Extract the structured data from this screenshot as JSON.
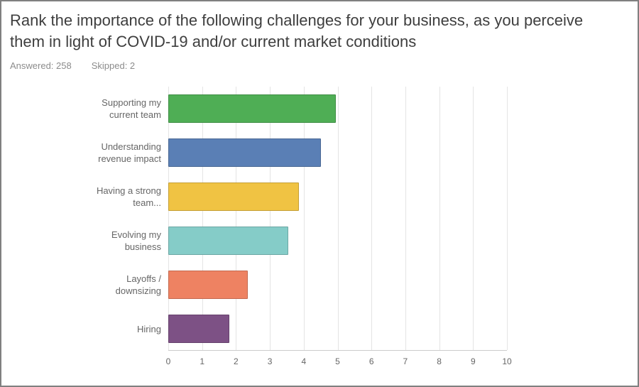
{
  "page": {
    "title": "Rank the importance of the following challenges for your business, as you perceive them in light of COVID-19 and/or current market conditions",
    "answered_label": "Answered: 258",
    "skipped_label": "Skipped: 2"
  },
  "chart_data": {
    "type": "bar",
    "orientation": "horizontal",
    "title": "Rank the importance of the following challenges for your business, as you perceive them in light of COVID-19 and/or current market conditions",
    "categories": [
      "Supporting my current team",
      "Understanding revenue impact",
      "Having a strong team...",
      "Evolving my business",
      "Layoffs / downsizing",
      "Hiring"
    ],
    "values": [
      4.95,
      4.5,
      3.85,
      3.55,
      2.35,
      1.8
    ],
    "colors": [
      "#4fae55",
      "#5a7fb5",
      "#f0c343",
      "#85ccc8",
      "#ee8262",
      "#7d5185"
    ],
    "xlabel": "",
    "ylabel": "",
    "xlim": [
      0,
      10
    ],
    "x_ticks": [
      0,
      1,
      2,
      3,
      4,
      5,
      6,
      7,
      8,
      9,
      10
    ],
    "grid": true,
    "legend": false
  }
}
